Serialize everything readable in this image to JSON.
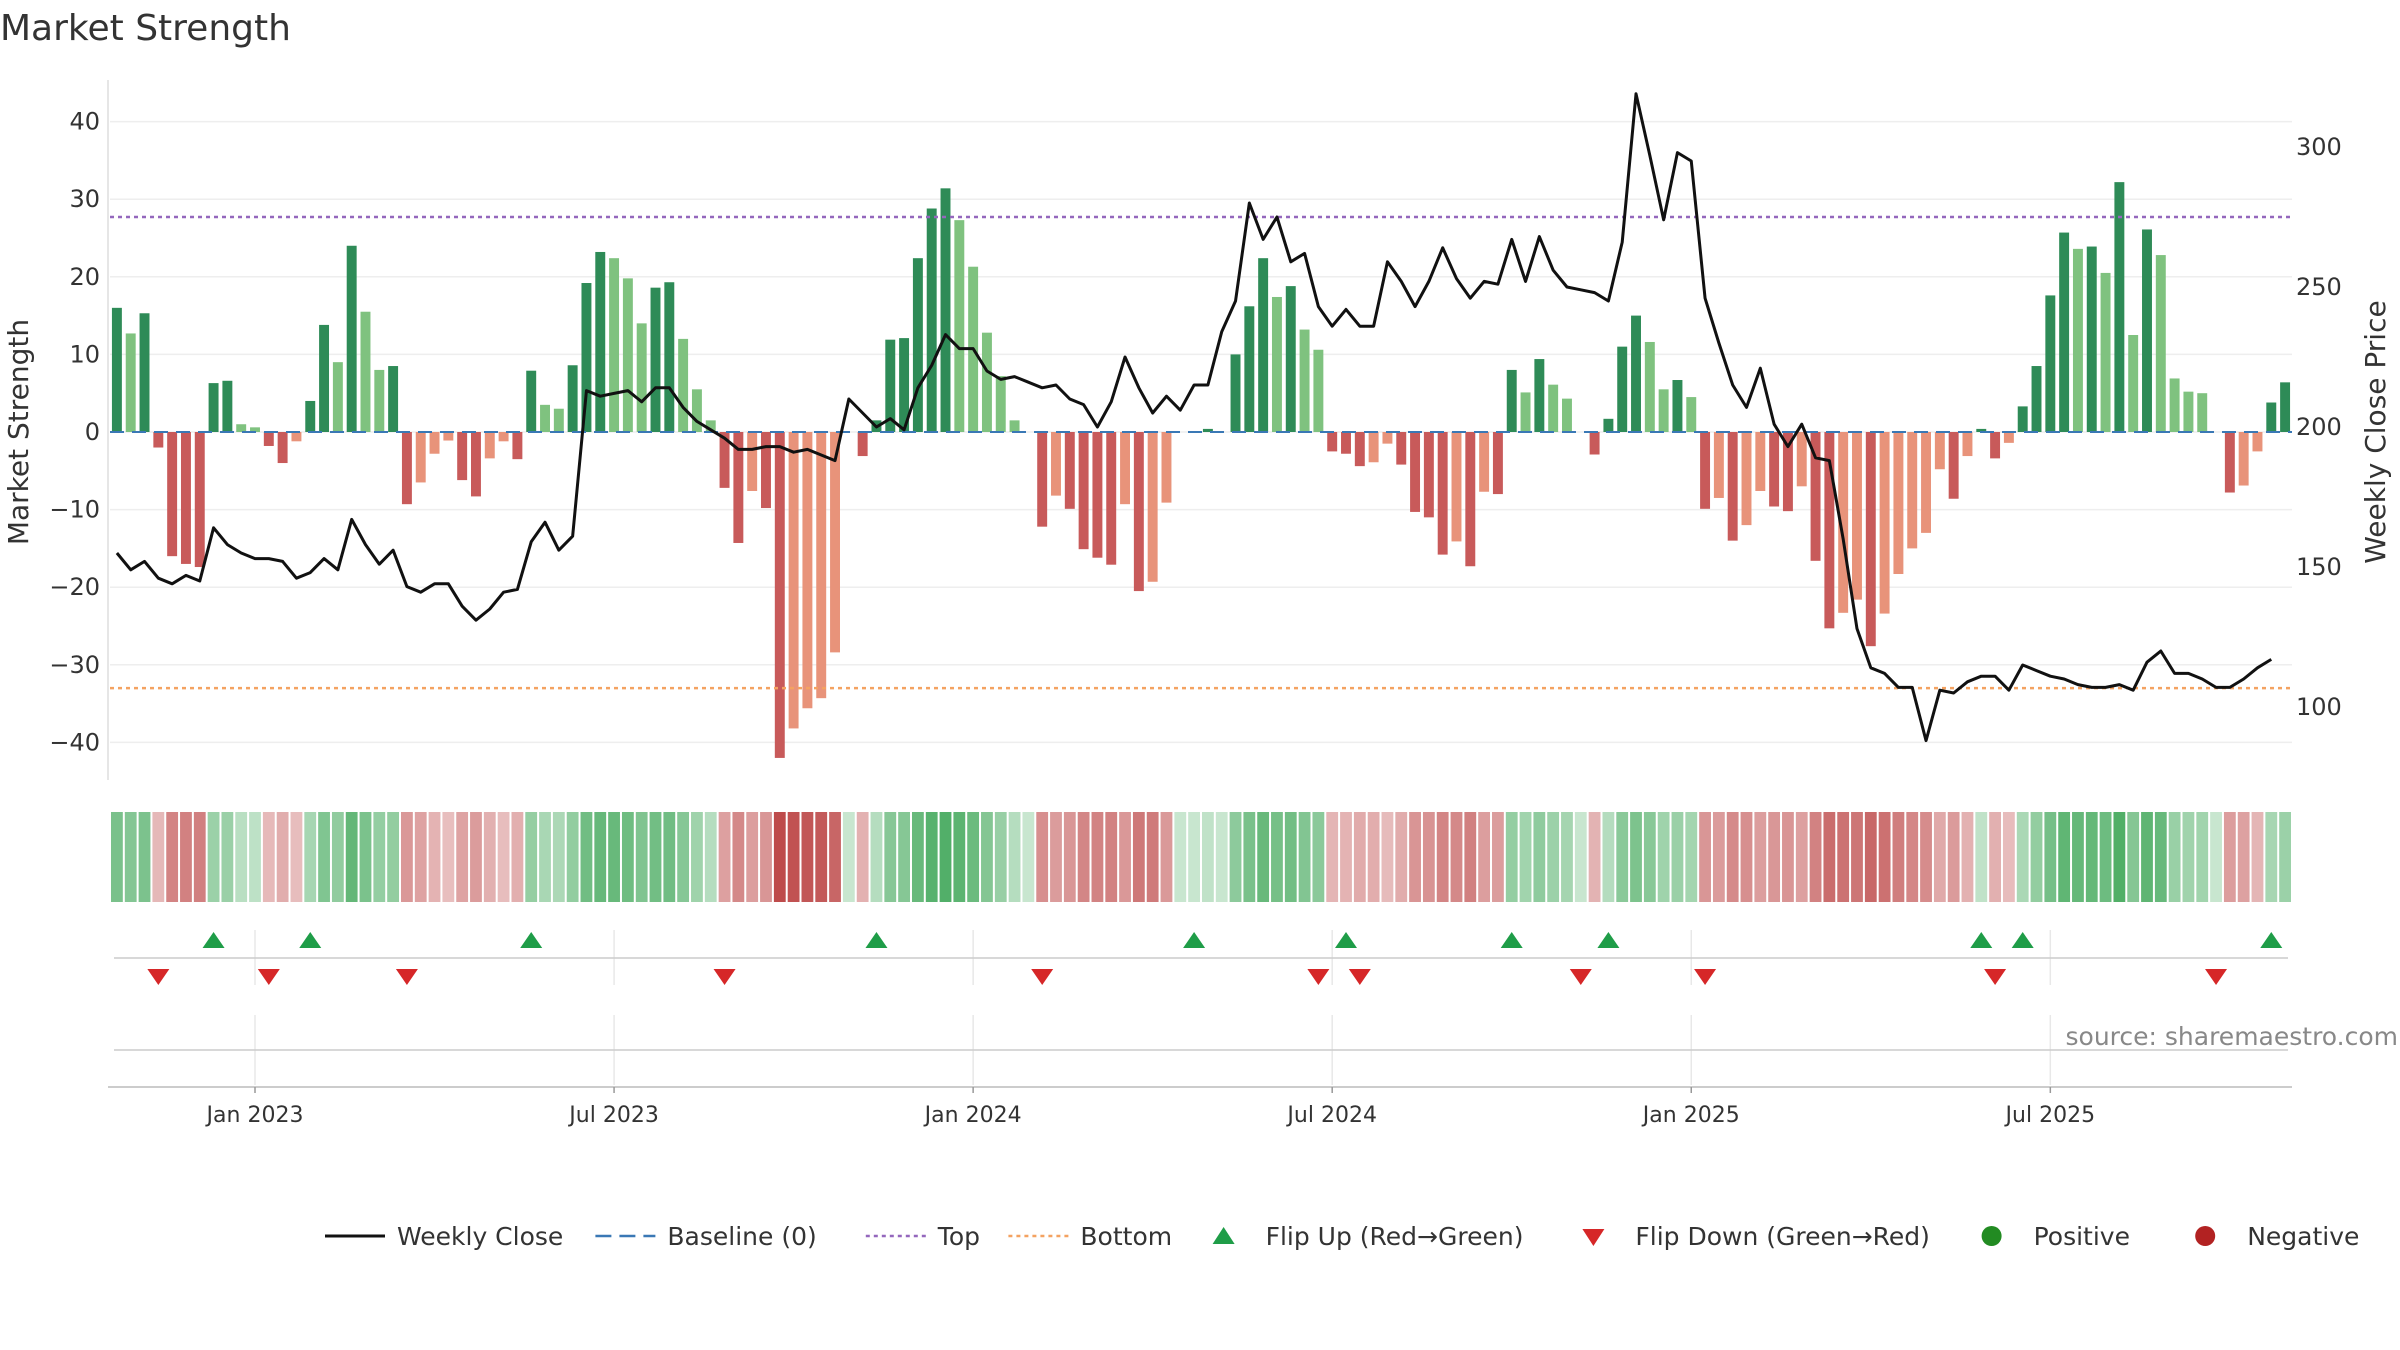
{
  "title": "Market Strength",
  "source_text": "source: sharemaestro.com",
  "legend": [
    {
      "label": "Weekly Close",
      "kind": "line",
      "color": "#111111"
    },
    {
      "label": "Baseline (0)",
      "kind": "dash",
      "color": "#3a78b5"
    },
    {
      "label": "Top",
      "kind": "dot",
      "color": "#9467bd"
    },
    {
      "label": "Bottom",
      "kind": "dot",
      "color": "#f4a261"
    },
    {
      "label": "Flip Up (Red→Green)",
      "kind": "tri-up",
      "color": "#1f9d48"
    },
    {
      "label": "Flip Down (Green→Red)",
      "kind": "tri-down",
      "color": "#d62728"
    },
    {
      "label": "Positive",
      "kind": "circle",
      "color": "#228b22"
    },
    {
      "label": "Negative",
      "kind": "circle",
      "color": "#b22222"
    }
  ],
  "colors": {
    "pos_strong": "#2e8b57",
    "pos_weak": "#7fc27f",
    "neg_strong": "#c85a5a",
    "neg_weak": "#e8937a",
    "price_line": "#111111",
    "baseline": "#3a78b5",
    "top_line": "#9467bd",
    "bottom_line": "#f4a261",
    "flip_up": "#1f9d48",
    "flip_down": "#d62728"
  },
  "chart_data": {
    "type": "bar",
    "title": "Market Strength",
    "xlabel": "",
    "ylabel": "Market Strength",
    "y2label": "Weekly Close Price",
    "ylim": [
      -45,
      45
    ],
    "yticks": [
      -40,
      -30,
      -20,
      -10,
      0,
      10,
      20,
      30,
      40
    ],
    "y2lim": [
      76.5,
      321
    ],
    "y2ticks": [
      100,
      150,
      200,
      250,
      300
    ],
    "top_level": 27.7,
    "bottom_level": -33.0,
    "baseline": 0,
    "x_start": "2022-10-23",
    "x_ticks": [
      "Jan 2023",
      "Jul 2023",
      "Jan 2024",
      "Jul 2024",
      "Jan 2025",
      "Jul 2025"
    ],
    "x_tick_weeks": [
      10,
      36,
      62,
      88,
      114,
      140
    ],
    "strength": [
      16,
      12.7,
      15.3,
      -2,
      -16,
      -17,
      -17.4,
      6.3,
      6.6,
      1,
      0.6,
      -1.8,
      -4,
      -1.2,
      4,
      13.8,
      9,
      24,
      15.5,
      8,
      8.5,
      -9.3,
      -6.5,
      -2.8,
      -1.1,
      -6.2,
      -8.3,
      -3.4,
      -1.2,
      -3.5,
      7.9,
      3.5,
      3,
      8.6,
      19.2,
      23.2,
      22.4,
      19.8,
      14,
      18.6,
      19.3,
      12,
      5.5,
      1.5,
      -7.2,
      -14.3,
      -7.6,
      -9.8,
      -42,
      -38.2,
      -35.6,
      -34.3,
      -28.4,
      0,
      -3.1,
      1.5,
      11.9,
      12.1,
      22.4,
      28.8,
      31.4,
      27.3,
      21.3,
      12.8,
      7.2,
      1.5,
      0,
      -12.2,
      -8.2,
      -9.9,
      -15.1,
      -16.2,
      -17.1,
      -9.3,
      -20.5,
      -19.3,
      -9.1,
      0,
      0,
      0.4,
      0,
      10,
      16.2,
      22.4,
      17.4,
      18.8,
      13.2,
      10.6,
      -2.5,
      -2.8,
      -4.4,
      -3.9,
      -1.5,
      -4.2,
      -10.3,
      -11,
      -15.8,
      -14.1,
      -17.3,
      -7.7,
      -8,
      8,
      5.1,
      9.4,
      6.1,
      4.3,
      0,
      -2.9,
      1.7,
      11,
      15,
      11.6,
      5.5,
      6.7,
      4.5,
      -9.9,
      -8.5,
      -14,
      -12,
      -7.6,
      -9.6,
      -10.2,
      -7,
      -16.6,
      -25.3,
      -23.3,
      -21.6,
      -27.6,
      -23.4,
      -18.3,
      -15,
      -13,
      -4.8,
      -8.6,
      -3.1,
      0.4,
      -3.4,
      -1.4,
      3.3,
      8.5,
      17.6,
      25.7,
      23.6,
      23.9,
      20.5,
      32.2,
      12.5,
      26.1,
      22.8,
      6.9,
      5.2,
      5,
      0,
      -7.8,
      -6.9,
      -2.5,
      3.8,
      6.4
    ],
    "price": [
      155,
      149,
      152,
      146,
      144,
      147,
      145,
      164,
      158,
      155,
      153,
      153,
      152,
      146,
      148,
      153,
      149,
      167,
      158,
      151,
      156,
      143,
      141,
      144,
      144,
      136,
      131,
      135,
      141,
      142,
      159,
      166,
      156,
      161,
      213,
      211,
      212,
      213,
      209,
      214,
      214,
      207,
      202,
      199,
      196,
      192,
      192,
      193,
      193,
      191,
      192,
      190,
      188,
      210,
      205,
      200,
      203,
      199,
      214,
      222,
      233,
      228,
      228,
      220,
      217,
      218,
      216,
      214,
      215,
      210,
      208,
      200,
      209,
      225,
      214,
      205,
      211,
      206,
      215,
      215,
      234,
      245,
      280,
      267,
      275,
      259,
      262,
      243,
      236,
      242,
      236,
      236,
      259,
      252,
      243,
      252,
      264,
      253,
      246,
      252,
      251,
      267,
      252,
      268,
      256,
      250,
      249,
      248,
      245,
      266,
      319,
      297,
      274,
      298,
      295,
      246,
      230,
      215,
      207,
      221,
      201,
      193,
      201,
      189,
      188,
      160,
      128,
      114,
      112,
      107,
      107,
      88,
      106,
      105,
      109,
      111,
      111,
      106,
      115,
      113,
      111,
      110,
      108,
      107,
      107,
      108,
      106,
      116,
      120,
      112,
      112,
      110,
      107,
      107,
      110,
      114,
      117
    ],
    "flip_up_weeks": [
      7,
      14,
      30,
      55,
      78,
      89,
      101,
      108,
      135,
      138,
      156
    ],
    "flip_down_weeks": [
      3,
      11,
      21,
      44,
      67,
      87,
      90,
      106,
      115,
      136,
      152
    ]
  }
}
